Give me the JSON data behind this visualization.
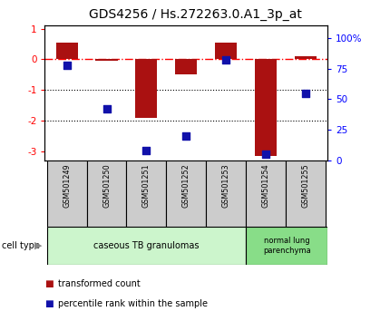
{
  "title": "GDS4256 / Hs.272263.0.A1_3p_at",
  "samples": [
    "GSM501249",
    "GSM501250",
    "GSM501251",
    "GSM501252",
    "GSM501253",
    "GSM501254",
    "GSM501255"
  ],
  "red_values": [
    0.55,
    -0.05,
    -1.9,
    -0.5,
    0.55,
    -3.15,
    0.1
  ],
  "blue_values": [
    78,
    42,
    8,
    20,
    82,
    5,
    55
  ],
  "ylim_left": [
    -3.3,
    1.1
  ],
  "ylim_right": [
    0,
    110
  ],
  "right_ticks": [
    0,
    25,
    50,
    75,
    100
  ],
  "right_tick_labels": [
    "0",
    "25",
    "50",
    "75",
    "100%"
  ],
  "left_ticks": [
    -3,
    -2,
    -1,
    0,
    1
  ],
  "left_tick_labels": [
    "-3",
    "-2",
    "-1",
    "0",
    "1"
  ],
  "dotted_lines": [
    -1,
    -2
  ],
  "dashdot_line": 0,
  "bar_color": "#aa1111",
  "dot_color": "#1111aa",
  "bar_width": 0.55,
  "dot_size": 35,
  "bg_color": "#ffffff",
  "legend_red_label": "transformed count",
  "legend_blue_label": "percentile rank within the sample",
  "cell_type_label": "cell type",
  "title_fontsize": 10,
  "tick_fontsize": 7.5,
  "label_fontsize": 7.5,
  "group1_color": "#ccf5cc",
  "group2_color": "#88dd88",
  "sample_box_color": "#cccccc"
}
